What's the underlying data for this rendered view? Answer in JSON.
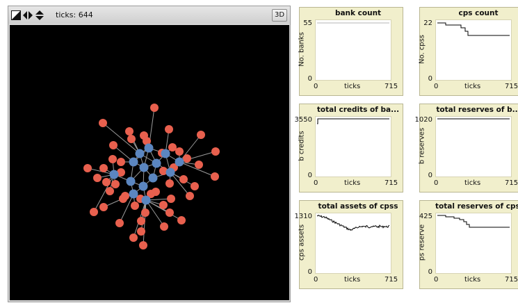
{
  "view": {
    "ticks_label": "ticks: 644",
    "three_d_label": "3D",
    "colors": {
      "background": "#000000",
      "bank": "#e8604e",
      "cps": "#5b86c0",
      "link": "#9a9a9a"
    }
  },
  "plots": [
    {
      "id": "bank-count",
      "title": "bank count",
      "ylabel": "No. banks",
      "ymax": "55",
      "ymin": "0",
      "xmin": "0",
      "xlabel": "ticks",
      "xmax": "715",
      "line_color": "#b5b5b5"
    },
    {
      "id": "cps-count",
      "title": "cps count",
      "ylabel": "No. cpss",
      "ymax": "22",
      "ymin": "0",
      "xmin": "0",
      "xlabel": "ticks",
      "xmax": "715",
      "line_color": "#000000"
    },
    {
      "id": "total-credits-of-banks",
      "title": "total credits of ba...",
      "ylabel": "b credits",
      "ymax": "3550",
      "ymin": "0",
      "xmin": "0",
      "xlabel": "ticks",
      "xmax": "715",
      "line_color": "#000000"
    },
    {
      "id": "total-reserves-of-banks",
      "title": "total reserves of b...",
      "ylabel": "b reserves",
      "ymax": "1020",
      "ymin": "0",
      "xmin": "0",
      "xlabel": "ticks",
      "xmax": "715",
      "line_color": "#000000"
    },
    {
      "id": "total-assets-of-cpss",
      "title": "total assets of cpss",
      "ylabel": "cps assets",
      "ymax": "1310",
      "ymin": "0",
      "xmin": "0",
      "xlabel": "ticks",
      "xmax": "715",
      "line_color": "#000000"
    },
    {
      "id": "total-reserves-of-cpss",
      "title": "total reserves of cpss",
      "ylabel": "ps reserve",
      "ymax": "425",
      "ymin": "0",
      "xmin": "0",
      "xlabel": "ticks",
      "xmax": "715",
      "line_color": "#000000"
    }
  ]
}
